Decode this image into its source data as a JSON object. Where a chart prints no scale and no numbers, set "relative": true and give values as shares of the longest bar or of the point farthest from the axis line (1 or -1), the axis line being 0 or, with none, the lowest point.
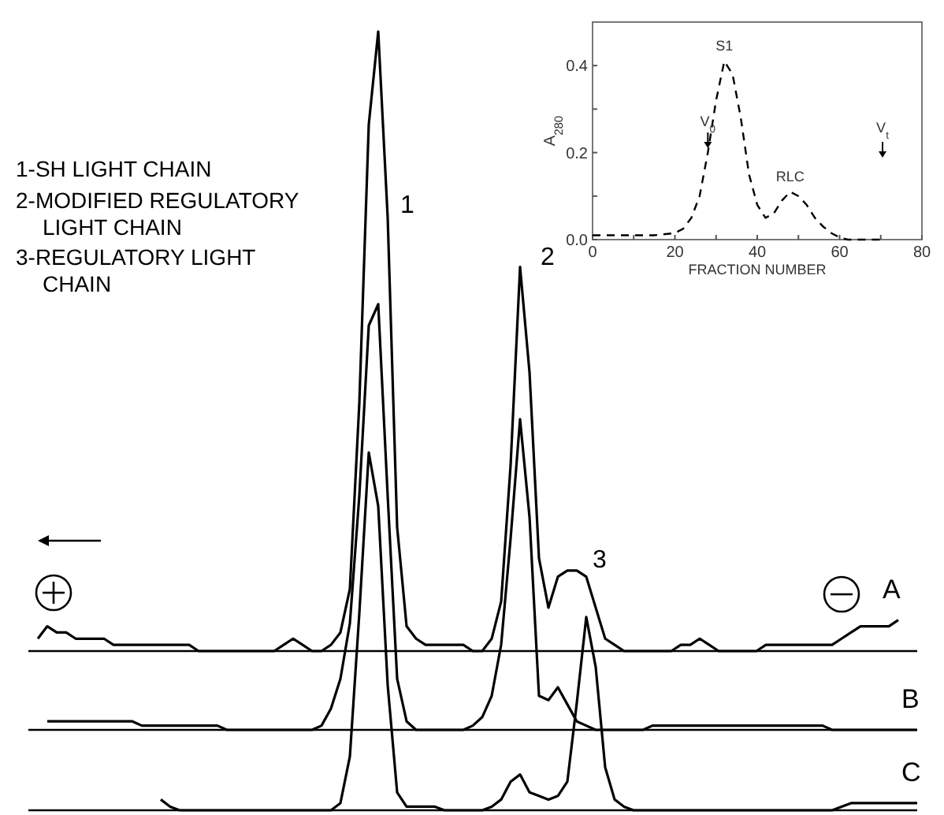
{
  "chart_data": [
    {
      "type": "line",
      "relative": true,
      "categories": [
        null,
        null,
        null,
        null,
        null,
        null,
        null,
        null,
        null,
        null,
        null,
        null,
        null,
        null,
        null,
        null,
        null,
        null,
        null,
        null,
        null,
        null,
        null,
        null,
        null,
        null,
        null,
        null,
        null,
        null,
        null,
        null,
        null,
        null,
        null,
        null,
        null,
        null,
        null,
        null,
        null,
        null,
        null,
        null,
        null,
        null,
        null,
        null,
        null,
        null,
        null,
        null,
        null,
        null,
        null,
        null,
        null,
        null,
        null,
        null,
        null,
        null,
        null,
        null,
        null,
        null,
        null,
        null,
        null,
        null,
        null,
        null,
        null,
        null,
        null,
        null,
        null,
        null,
        null,
        null,
        null,
        null,
        null,
        null,
        null,
        null,
        null,
        null,
        null,
        null,
        null,
        null,
        null,
        null,
        null
      ],
      "series": [
        {
          "name": "A",
          "color": "#000000",
          "values": [
            null,
            0.02,
            0.04,
            0.03,
            0.03,
            0.02,
            0.02,
            0.02,
            0.02,
            0.01,
            0.01,
            0.01,
            0.01,
            0.01,
            0.01,
            0.01,
            0.01,
            0.01,
            0,
            0,
            0,
            0,
            0,
            0,
            0,
            0,
            0,
            0.01,
            0.02,
            0.01,
            0,
            0,
            0.01,
            0.03,
            0.1,
            0.4,
            0.85,
            1,
            0.7,
            0.2,
            0.04,
            0.02,
            0.01,
            0.01,
            0.01,
            0.01,
            0.01,
            0,
            0,
            0.02,
            0.08,
            0.3,
            0.62,
            0.45,
            0.15,
            0.07,
            0.12,
            0.13,
            0.13,
            0.12,
            0.07,
            0.02,
            0.01,
            0,
            0,
            0,
            0,
            0,
            0,
            0.01,
            0.01,
            0.02,
            0.01,
            0,
            0,
            0,
            0,
            0,
            0.01,
            0.01,
            0.01,
            0.01,
            0.01,
            0.01,
            0.01,
            0.01,
            0.02,
            0.03,
            0.04,
            0.04,
            0.04,
            0.04,
            0.05,
            null,
            null
          ]
        }
      ],
      "annotations": [
        "1-SH LIGHT CHAIN",
        "2-MODIFIED REGULATORY LIGHT CHAIN",
        "3-REGULATORY LIGHT CHAIN",
        "1",
        "2",
        "3"
      ]
    },
    {
      "type": "line",
      "relative": true,
      "categories": [
        null,
        null,
        null,
        null,
        null,
        null,
        null,
        null,
        null,
        null,
        null,
        null,
        null,
        null,
        null,
        null,
        null,
        null,
        null,
        null,
        null,
        null,
        null,
        null,
        null,
        null,
        null,
        null,
        null,
        null,
        null,
        null,
        null,
        null,
        null,
        null,
        null,
        null,
        null,
        null,
        null,
        null,
        null,
        null,
        null,
        null,
        null,
        null,
        null,
        null,
        null,
        null,
        null,
        null,
        null,
        null,
        null,
        null,
        null,
        null,
        null,
        null,
        null,
        null,
        null,
        null,
        null,
        null,
        null,
        null,
        null,
        null,
        null,
        null,
        null,
        null,
        null,
        null,
        null,
        null,
        null,
        null,
        null,
        null,
        null,
        null,
        null,
        null,
        null,
        null,
        null,
        null,
        null,
        null,
        null
      ],
      "series": [
        {
          "name": "B",
          "color": "#000000",
          "values": [
            null,
            null,
            0.02,
            0.02,
            0.02,
            0.02,
            0.02,
            0.02,
            0.02,
            0.02,
            0.02,
            0.02,
            0.01,
            0.01,
            0.01,
            0.01,
            0.01,
            0.01,
            0.01,
            0.01,
            0.01,
            0,
            0,
            0,
            0,
            0,
            0,
            0,
            0,
            0,
            0,
            0.01,
            0.05,
            0.12,
            0.25,
            0.55,
            0.95,
            1,
            0.55,
            0.12,
            0.02,
            0,
            0,
            0,
            0,
            0,
            0,
            0.01,
            0.03,
            0.08,
            0.2,
            0.45,
            0.73,
            0.5,
            0.08,
            0.07,
            0.1,
            0.06,
            0.02,
            0.01,
            0,
            0,
            0,
            0,
            0,
            0,
            0.01,
            0.01,
            0.01,
            0.01,
            0.01,
            0.01,
            0.01,
            0.01,
            0.01,
            0.01,
            0.01,
            0.01,
            0.01,
            0.01,
            0.01,
            0.01,
            0.01,
            0.01,
            0.01,
            0,
            0,
            0,
            0,
            0,
            0,
            0,
            0,
            0,
            0
          ]
        }
      ]
    },
    {
      "type": "line",
      "relative": true,
      "categories": [
        null,
        null,
        null,
        null,
        null,
        null,
        null,
        null,
        null,
        null,
        null,
        null,
        null,
        null,
        null,
        null,
        null,
        null,
        null,
        null,
        null,
        null,
        null,
        null,
        null,
        null,
        null,
        null,
        null,
        null,
        null,
        null,
        null,
        null,
        null,
        null,
        null,
        null,
        null,
        null,
        null,
        null,
        null,
        null,
        null,
        null,
        null,
        null,
        null,
        null,
        null,
        null,
        null,
        null,
        null,
        null,
        null,
        null,
        null,
        null,
        null,
        null,
        null,
        null,
        null,
        null,
        null,
        null,
        null,
        null,
        null,
        null,
        null,
        null,
        null,
        null,
        null,
        null,
        null,
        null,
        null,
        null,
        null,
        null,
        null,
        null,
        null,
        null,
        null,
        null,
        null,
        null,
        null,
        null,
        null
      ],
      "series": [
        {
          "name": "C",
          "color": "#000000",
          "values": [
            null,
            null,
            null,
            null,
            null,
            null,
            null,
            null,
            null,
            null,
            null,
            null,
            null,
            null,
            0.03,
            0.01,
            0,
            0,
            0,
            0,
            0,
            0,
            0,
            0,
            0,
            0,
            0,
            0,
            0,
            0,
            0,
            0,
            0,
            0.02,
            0.15,
            0.55,
            1,
            0.85,
            0.35,
            0.05,
            0.01,
            0.01,
            0.01,
            0.01,
            0,
            0,
            0,
            0,
            0,
            0.01,
            0.03,
            0.08,
            0.1,
            0.05,
            0.04,
            0.03,
            0.04,
            0.08,
            0.3,
            0.54,
            0.4,
            0.12,
            0.03,
            0.01,
            0,
            0,
            0,
            0,
            0,
            0,
            0,
            0,
            0,
            0,
            0,
            0,
            0,
            0,
            0,
            0,
            0,
            0,
            0,
            0,
            0,
            0,
            0.01,
            0.02,
            0.02,
            0.02,
            0.02,
            0.02,
            0.02,
            0.02,
            0.02
          ]
        }
      ]
    },
    {
      "type": "line",
      "line_style": "dashed",
      "xlabel": "FRACTION NUMBER",
      "ylabel": "A$_{280}$",
      "x": [
        0,
        5,
        10,
        15,
        20,
        22,
        24,
        26,
        28,
        30,
        32,
        34,
        36,
        38,
        40,
        42,
        44,
        46,
        48,
        50,
        52,
        54,
        56,
        58,
        60,
        62,
        65,
        68,
        70
      ],
      "series": [
        {
          "color": "#000000",
          "values": [
            0.01,
            0.01,
            0.01,
            0.01,
            0.015,
            0.025,
            0.05,
            0.1,
            0.2,
            0.32,
            0.41,
            0.38,
            0.28,
            0.15,
            0.08,
            0.05,
            0.06,
            0.09,
            0.11,
            0.1,
            0.08,
            0.05,
            0.03,
            0.015,
            0.005,
            0,
            0,
            0,
            0
          ]
        }
      ],
      "xlim": [
        0,
        80
      ],
      "ylim": [
        0,
        0.5
      ],
      "xticks": [
        0,
        {
          "value": 10,
          "label": null
        },
        20,
        {
          "value": 30,
          "label": null
        },
        40,
        {
          "value": 50,
          "label": null
        },
        60,
        {
          "value": 70,
          "label": null
        },
        80
      ],
      "yticks": [
        {
          "value": 0,
          "label": "0.0"
        },
        {
          "value": 0.1,
          "label": null
        },
        0.2,
        {
          "value": 0.3,
          "label": null
        },
        0.4
      ],
      "annotations": [
        {
          "text": "S1",
          "x": 32,
          "y": 0.42
        },
        {
          "text": "RLC",
          "x": 48,
          "y": 0.12
        },
        {
          "text": "V$_{0}$",
          "x": 28,
          "y": 0.21
        },
        "V$_{t}$"
      ]
    }
  ]
}
